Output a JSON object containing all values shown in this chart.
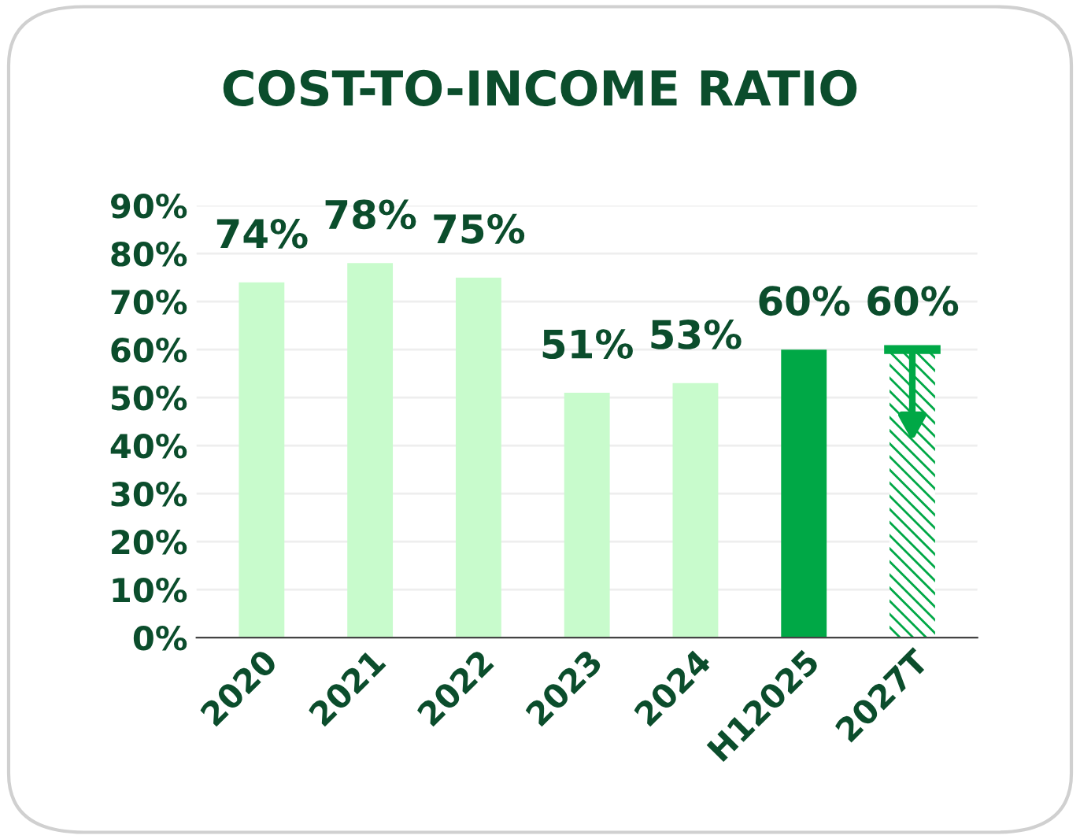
{
  "chart_data": {
    "type": "bar",
    "title": "COST-TO-INCOME RATIO",
    "categories": [
      "2020",
      "2021",
      "2022",
      "2023",
      "2024",
      "H12025",
      "2027T"
    ],
    "values": [
      74,
      78,
      75,
      51,
      53,
      60,
      60
    ],
    "colors": [
      "#c8fbcc",
      "#c8fbcc",
      "#c8fbcc",
      "#c8fbcc",
      "#c8fbcc",
      "#00a846",
      "#00a846"
    ],
    "value_labels": [
      "74%",
      "78%",
      "75%",
      "51%",
      "53%",
      "60%",
      "60%"
    ],
    "ylim": [
      0,
      90
    ],
    "yticks": [
      {
        "value": 0,
        "label": "0%"
      },
      {
        "value": 10,
        "label": "10%"
      },
      {
        "value": 20,
        "label": "20%"
      },
      {
        "value": 30,
        "label": "30%"
      },
      {
        "value": 40,
        "label": "40%"
      },
      {
        "value": 50,
        "label": "50%"
      },
      {
        "value": 60,
        "label": "60%"
      },
      {
        "value": 70,
        "label": "70%"
      },
      {
        "value": 80,
        "label": "80%"
      },
      {
        "value": 90,
        "label": "90%"
      }
    ],
    "grid": "y"
  }
}
